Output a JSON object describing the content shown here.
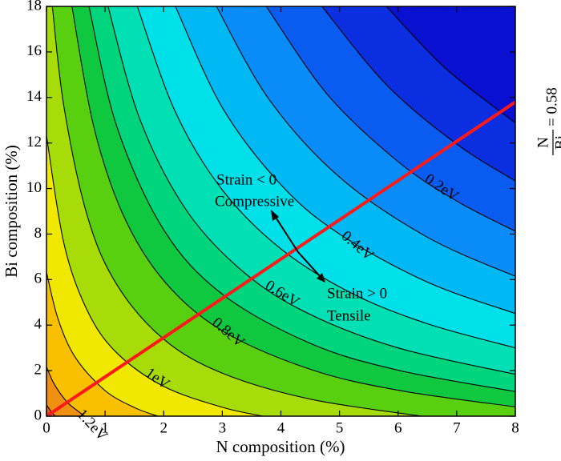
{
  "chart_data": {
    "type": "contour",
    "xlabel": "N composition (%)",
    "ylabel": "Bi composition (%)",
    "xlim": [
      0,
      8
    ],
    "ylim": [
      0,
      18
    ],
    "xticks": [
      0,
      1,
      2,
      3,
      4,
      5,
      6,
      7,
      8
    ],
    "yticks": [
      0,
      2,
      4,
      6,
      8,
      10,
      12,
      14,
      16,
      18
    ],
    "background_color": "#0a10d0",
    "contours": [
      {
        "level": 0.0,
        "color": "#0a2ee0",
        "x": [
          5.8,
          6.8,
          8
        ],
        "y": [
          18,
          15.3,
          12.88
        ]
      },
      {
        "level": 0.1,
        "color": "#0a5cf0",
        "x": [
          4.7,
          5.8,
          7,
          8
        ],
        "y": [
          18,
          14.56,
          11.95,
          10.33
        ]
      },
      {
        "level": 0.2,
        "label": "0.2eV",
        "color": "#0a8cf8",
        "x": [
          3.75,
          4.8,
          6,
          7,
          8
        ],
        "y": [
          18,
          14.11,
          11.18,
          9.45,
          8.12
        ]
      },
      {
        "level": 0.3,
        "color": "#00b8f4",
        "x": [
          2.9,
          3.8,
          5,
          6.5,
          8
        ],
        "y": [
          18,
          13.91,
          10.5,
          7.86,
          6.14
        ]
      },
      {
        "level": 0.4,
        "label": "0.4eV",
        "color": "#00e0e8",
        "x": [
          2.2,
          3,
          4,
          5,
          6.5,
          8
        ],
        "y": [
          18,
          13.56,
          10.17,
          8,
          5.89,
          4.51
        ]
      },
      {
        "level": 0.5,
        "color": "#00e0b4",
        "x": [
          1.55,
          2.2,
          3,
          4,
          5.2,
          6.5,
          8
        ],
        "y": [
          18,
          13.36,
          9.94,
          7.35,
          5.41,
          4.06,
          3.0
        ]
      },
      {
        "level": 0.6,
        "label": "0.6eV",
        "color": "#00d47c",
        "x": [
          1.05,
          1.6,
          2.4,
          3.4,
          4.5,
          6,
          8
        ],
        "y": [
          18,
          13,
          9,
          6.25,
          4.47,
          3,
          1.84
        ]
      },
      {
        "level": 0.7,
        "color": "#10c840",
        "x": [
          0.725,
          1.2,
          2,
          3,
          4.5,
          6,
          8
        ],
        "y": [
          18,
          12.72,
          8.19,
          5.36,
          3.2,
          2.02,
          1.08
        ]
      },
      {
        "level": 0.8,
        "label": "0.8eV",
        "color": "#58d010",
        "x": [
          0.435,
          0.8,
          1.3,
          2,
          3,
          4.5,
          6,
          8
        ],
        "y": [
          18,
          12.79,
          8.89,
          5.96,
          3.75,
          2.06,
          1.14,
          0.41
        ]
      },
      {
        "level": 0.9,
        "color": "#a8dc08",
        "x": [
          0.1,
          0.3,
          0.7,
          1.2,
          2,
          3,
          4.5,
          6.4
        ],
        "y": [
          18,
          13.56,
          8.77,
          5.78,
          3.38,
          1.89,
          0.75,
          0
        ]
      },
      {
        "level": 1.0,
        "label": "1eV",
        "color": "#f0e800",
        "x": [
          0,
          0.3,
          0.7,
          1.2,
          2,
          3,
          3.7
        ],
        "y": [
          12.33,
          7.56,
          4.62,
          2.78,
          1.31,
          0.39,
          0
        ]
      },
      {
        "level": 1.1,
        "color": "#f8c000",
        "x": [
          0,
          0.2,
          0.5,
          1,
          1.5,
          1.9
        ],
        "y": [
          6.33,
          4.25,
          2.55,
          1.125,
          0.38,
          0
        ]
      },
      {
        "level": 1.2,
        "label": "1.2eV",
        "color": "#f09010",
        "x": [
          0,
          0.1,
          0.2,
          0.3,
          0.4,
          0.65
        ],
        "y": [
          2.17,
          1.57,
          1.13,
          0.78,
          0.5,
          0
        ]
      },
      {
        "level": 1.3,
        "color": "#e86010",
        "x": [
          0,
          0.05,
          0.1,
          0.15
        ],
        "y": [
          0.5,
          0.31,
          0.14,
          0
        ]
      }
    ],
    "line": {
      "color": "#ff1a1a",
      "x": [
        0,
        8
      ],
      "y": [
        0,
        13.8
      ],
      "label_numerator": "N",
      "label_denominator": "Bi",
      "label_value": "= 0.58"
    },
    "annotations": [
      "Strain < 0",
      "Compressive",
      "Strain > 0",
      "Tensile"
    ]
  }
}
